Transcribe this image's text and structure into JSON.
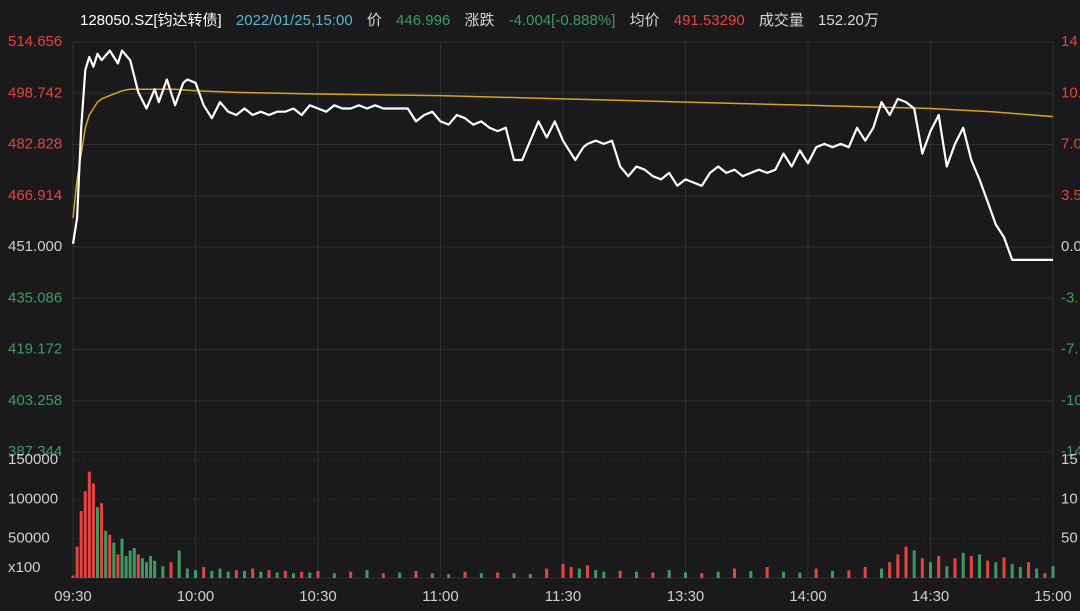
{
  "header": {
    "code": "128050.SZ[钧达转债]",
    "datetime": "2022/01/25,15:00",
    "price_label": "价",
    "price": "446.996",
    "change_label": "涨跌",
    "change": "-4.004[-0.888%]",
    "avg_label": "均价",
    "avg": "491.53290",
    "volume_label": "成交量",
    "volume": "152.20万"
  },
  "colors": {
    "background": "#1a1a1c",
    "grid": "#2f2f33",
    "price_line": "#ffffff",
    "avg_line": "#d8a224",
    "up": "#e5433f",
    "down": "#3e9a62",
    "axis_text": "#d0d0d0",
    "header_code": "#ffffff",
    "header_datetime": "#5ab6d6",
    "header_price": "#3e9a62",
    "header_avg": "#e5433f"
  },
  "chart_data": {
    "type": "line",
    "reference_price": 451.0,
    "y_ticks": [
      "514.656",
      "498.742",
      "482.828",
      "466.914",
      "451.000",
      "435.086",
      "419.172",
      "403.258",
      "387.344"
    ],
    "ylim": [
      387.344,
      514.656
    ],
    "pct_ticks": [
      "14",
      "10.",
      "7.0",
      "3.5",
      "0.0",
      "-3.",
      "-7.",
      "-10",
      "-14"
    ],
    "x_ticks": [
      "09:30",
      "10:00",
      "10:30",
      "11:00",
      "11:30",
      "13:30",
      "14:00",
      "14:30",
      "15:00"
    ],
    "price_series": {
      "x_minutes": [
        0,
        1,
        2,
        3,
        4,
        5,
        6,
        7,
        9,
        11,
        12,
        14,
        16,
        18,
        20,
        21,
        23,
        25,
        27,
        28,
        30,
        32,
        34,
        36,
        38,
        40,
        42,
        44,
        46,
        48,
        50,
        52,
        54,
        56,
        58,
        60,
        62,
        64,
        66,
        68,
        70,
        72,
        74,
        76,
        78,
        80,
        82,
        84,
        86,
        88,
        90,
        92,
        94,
        96,
        98,
        100,
        102,
        104,
        106,
        108,
        110,
        112,
        114,
        116,
        118,
        120,
        121,
        122,
        123,
        124,
        125,
        126,
        128,
        130,
        132,
        134,
        136,
        138,
        140,
        142,
        144,
        146,
        148,
        150,
        152,
        154,
        156,
        158,
        160,
        162,
        164,
        166,
        168,
        170,
        172,
        174,
        176,
        178,
        180,
        182,
        184,
        186,
        188,
        190,
        192,
        194,
        196,
        198,
        200,
        202,
        204,
        206,
        208,
        210,
        212,
        214,
        216,
        218,
        220,
        222,
        224,
        226,
        228,
        230,
        232,
        234,
        236,
        238,
        239,
        240
      ],
      "y": [
        452,
        460,
        488,
        506,
        510,
        507,
        511,
        509,
        512,
        508,
        512,
        509,
        499,
        494,
        500,
        496,
        503,
        495,
        502,
        503,
        502,
        495,
        491,
        496,
        493,
        492,
        494,
        492,
        493,
        492,
        493,
        493,
        494,
        492,
        495,
        494,
        493,
        495,
        494,
        494,
        495,
        494,
        495,
        494,
        494,
        494,
        494,
        490,
        492,
        493,
        490,
        489,
        492,
        491,
        489,
        490,
        488,
        487,
        488,
        478,
        478,
        484,
        490,
        485,
        490,
        484,
        482,
        480,
        478,
        480,
        482,
        483,
        484,
        483,
        484,
        476,
        473,
        476,
        475,
        473,
        472,
        474,
        470,
        472,
        471,
        470,
        474,
        476,
        474,
        475,
        473,
        474,
        475,
        474,
        475,
        480,
        476,
        481,
        477,
        482,
        483,
        482,
        483,
        482,
        488,
        484,
        488,
        496,
        492,
        497,
        496,
        494,
        480,
        487,
        492,
        476,
        483,
        488,
        478,
        472,
        465,
        458,
        454,
        447,
        447,
        447,
        447,
        447,
        447,
        447
      ]
    },
    "avg_series": {
      "x_minutes": [
        0,
        1,
        2,
        3,
        4,
        5,
        6,
        7,
        9,
        11,
        12,
        14,
        16,
        20,
        25,
        30,
        40,
        60,
        90,
        120,
        150,
        180,
        210,
        225,
        240
      ],
      "y": [
        460,
        472,
        480,
        488,
        492,
        494,
        496,
        497,
        498,
        499,
        499.5,
        500,
        500,
        500,
        500,
        499.5,
        499,
        498.5,
        498,
        497,
        496,
        495,
        494,
        493,
        491.5
      ]
    },
    "volume": {
      "y_ticks": [
        "150000",
        "100000",
        "50000",
        "x100"
      ],
      "ylim": [
        0,
        160000
      ],
      "x_minutes": [
        0,
        1,
        2,
        3,
        4,
        5,
        6,
        7,
        8,
        9,
        10,
        11,
        12,
        13,
        14,
        15,
        16,
        17,
        18,
        19,
        20,
        22,
        24,
        26,
        28,
        30,
        32,
        34,
        36,
        38,
        40,
        42,
        44,
        46,
        48,
        50,
        52,
        54,
        56,
        58,
        60,
        64,
        68,
        72,
        76,
        80,
        84,
        88,
        92,
        96,
        100,
        104,
        108,
        112,
        116,
        120,
        122,
        124,
        126,
        128,
        130,
        134,
        138,
        142,
        146,
        150,
        154,
        158,
        162,
        166,
        170,
        174,
        178,
        182,
        186,
        190,
        194,
        198,
        200,
        202,
        204,
        206,
        208,
        210,
        212,
        214,
        216,
        218,
        220,
        222,
        224,
        226,
        228,
        230,
        232,
        234,
        236,
        238,
        240
      ],
      "values": [
        3000,
        40000,
        85000,
        110000,
        135000,
        120000,
        90000,
        95000,
        60000,
        55000,
        45000,
        30000,
        50000,
        28000,
        35000,
        38000,
        30000,
        25000,
        20000,
        28000,
        22000,
        15000,
        20000,
        35000,
        12000,
        10000,
        14000,
        9000,
        12000,
        8000,
        10000,
        9000,
        12000,
        8000,
        10000,
        7000,
        9000,
        6000,
        8000,
        7000,
        9000,
        6000,
        8000,
        10000,
        6000,
        7000,
        9000,
        6000,
        5000,
        8000,
        6000,
        7000,
        6000,
        5000,
        12000,
        18000,
        14000,
        12000,
        16000,
        10000,
        8000,
        9000,
        8000,
        7000,
        10000,
        7000,
        6000,
        8000,
        12000,
        9000,
        14000,
        8000,
        7000,
        12000,
        9000,
        10000,
        14000,
        12000,
        20000,
        30000,
        40000,
        35000,
        25000,
        20000,
        28000,
        15000,
        25000,
        32000,
        28000,
        30000,
        22000,
        20000,
        26000,
        18000,
        14000,
        20000,
        12000,
        6000,
        15000
      ],
      "directions": [
        "up",
        "up",
        "up",
        "up",
        "up",
        "up",
        "down",
        "up",
        "down",
        "up",
        "down",
        "up",
        "down",
        "down",
        "down",
        "down",
        "up",
        "down",
        "down",
        "down",
        "down",
        "down",
        "up",
        "down",
        "down",
        "down",
        "up",
        "down",
        "down",
        "down",
        "up",
        "down",
        "up",
        "down",
        "up",
        "down",
        "up",
        "down",
        "up",
        "down",
        "up",
        "down",
        "up",
        "down",
        "up",
        "down",
        "up",
        "down",
        "down",
        "up",
        "down",
        "up",
        "down",
        "down",
        "up",
        "up",
        "up",
        "down",
        "up",
        "down",
        "down",
        "up",
        "down",
        "up",
        "down",
        "down",
        "up",
        "down",
        "up",
        "down",
        "up",
        "down",
        "down",
        "up",
        "down",
        "up",
        "up",
        "down",
        "up",
        "up",
        "up",
        "down",
        "up",
        "down",
        "up",
        "down",
        "up",
        "down",
        "up",
        "down",
        "up",
        "down",
        "up",
        "down",
        "down",
        "up",
        "down",
        "up",
        "down"
      ]
    }
  }
}
